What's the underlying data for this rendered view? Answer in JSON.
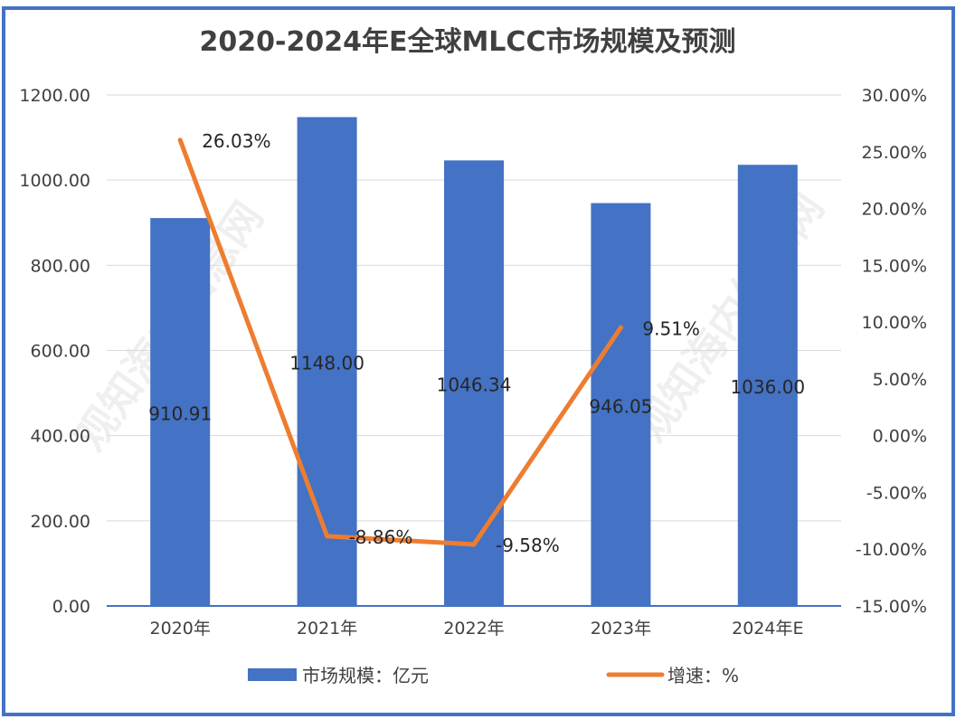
{
  "chart_data": {
    "type": "bar+line",
    "title": "2020-2024年E全球MLCC市场规模及预测",
    "categories": [
      "2020年",
      "2021年",
      "2022年",
      "2023年",
      "2024年E"
    ],
    "series": [
      {
        "name": "市场规模：亿元",
        "type": "bar",
        "axis": "left",
        "color": "#4472c4",
        "values": [
          910.91,
          1148.0,
          1046.34,
          946.05,
          1036.0
        ],
        "labels": [
          "910.91",
          "1148.00",
          "1046.34",
          "946.05",
          "1036.00"
        ]
      },
      {
        "name": "增速：%",
        "type": "line",
        "axis": "right",
        "color": "#ed7d31",
        "values": [
          26.03,
          -8.86,
          -9.58,
          9.51,
          null
        ],
        "labels": [
          "26.03%",
          "-8.86%",
          "-9.58%",
          "9.51%",
          ""
        ]
      }
    ],
    "left_axis": {
      "range": [
        0,
        1200
      ],
      "ticks": [
        "0.00",
        "200.00",
        "400.00",
        "600.00",
        "800.00",
        "1000.00",
        "1200.00"
      ]
    },
    "right_axis": {
      "range": [
        -15,
        30
      ],
      "ticks": [
        "-15.00%",
        "-10.00%",
        "-5.00%",
        "0.00%",
        "5.00%",
        "10.00%",
        "15.00%",
        "20.00%",
        "25.00%",
        "30.00%"
      ]
    },
    "grid": true,
    "legend_position": "bottom",
    "watermark": "观知海内信息网"
  }
}
